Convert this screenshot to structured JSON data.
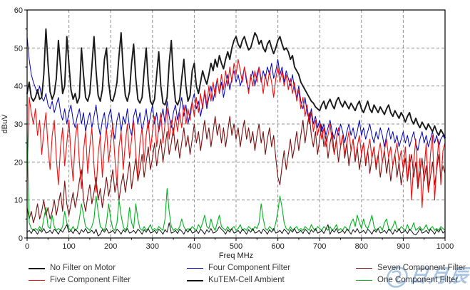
{
  "figure": {
    "background": "#ffffff"
  },
  "watermark": {
    "text": "日月辰",
    "color": "#a9c4e2"
  },
  "legend": {
    "items": [
      {
        "label": "No Filter on Motor",
        "color": "#1a1a1a",
        "weight": 2
      },
      {
        "label": "Four Component Filter",
        "color": "#0000bb",
        "weight": 1
      },
      {
        "label": "Seven Component Filter",
        "color": "#7a1010",
        "weight": 1
      },
      {
        "label": "Five Component Filter",
        "color": "#ee1111",
        "weight": 1
      },
      {
        "label": "KuTEM-Cell Ambient",
        "color": "#111111",
        "weight": 2
      },
      {
        "label": "One Component Filter",
        "color": "#00b41e",
        "weight": 1
      }
    ]
  },
  "chart_data": {
    "type": "line",
    "title": "",
    "xlabel": "Freq MHz",
    "ylabel": "dBuV",
    "xlim": [
      0,
      1000
    ],
    "ylim": [
      0,
      60
    ],
    "x_ticks": [
      0,
      100,
      200,
      300,
      400,
      500,
      600,
      700,
      800,
      900,
      1000
    ],
    "y_ticks": [
      0,
      10,
      20,
      30,
      40,
      50,
      60
    ],
    "grid": "dashed",
    "legend_position": "bottom",
    "x": {
      "start": 0,
      "step": 5,
      "count": 201
    },
    "series": [
      {
        "name": "No Filter on Motor",
        "color": "#1a1a1a",
        "width": 1.9,
        "values": [
          38,
          41,
          37,
          36,
          37,
          39,
          36.5,
          37,
          43,
          55,
          46,
          38.5,
          36.5,
          38,
          42,
          52,
          45,
          38,
          40,
          53,
          46,
          39,
          36.5,
          38,
          35.5,
          37,
          50,
          43,
          37,
          36,
          38,
          45,
          53,
          44,
          37.5,
          36,
          39,
          47,
          50,
          41,
          36.5,
          36,
          38,
          41,
          48,
          54,
          44,
          37.5,
          36,
          38.5,
          46,
          51,
          42,
          36.5,
          35.5,
          37,
          44,
          50,
          41,
          36,
          35,
          36.5,
          43,
          49,
          40,
          35.5,
          35,
          37,
          46,
          52,
          42,
          36,
          35,
          36.5,
          42,
          47,
          40,
          36,
          37.5,
          44,
          46,
          40,
          38,
          41,
          44,
          42,
          40.5,
          43,
          46,
          44,
          47,
          45,
          48,
          46,
          44.5,
          47,
          49,
          47,
          50,
          52,
          53,
          51,
          50,
          52,
          53,
          51,
          49.5,
          50,
          52,
          54,
          53,
          51,
          52,
          50,
          49,
          51,
          52,
          50,
          48.5,
          50,
          52,
          53,
          51,
          49.5,
          50,
          49,
          47,
          48,
          45,
          44,
          43,
          41,
          40,
          39,
          38,
          37,
          36,
          35.5,
          34.5,
          34,
          33.5,
          35,
          36,
          34,
          35.5,
          36.5,
          35,
          34,
          36,
          37,
          35.5,
          34.5,
          36,
          35,
          34,
          35.5,
          34.5,
          33.5,
          35,
          36,
          34,
          33,
          34.5,
          36,
          34,
          33,
          35,
          34,
          33,
          34.5,
          33.5,
          32.5,
          34,
          35,
          33,
          32,
          33.5,
          32.5,
          31.5,
          33,
          32,
          30.5,
          32,
          33,
          31,
          30,
          31.5,
          30,
          29,
          30.5,
          29.5,
          28.5,
          30,
          29,
          28,
          29.5,
          28,
          27,
          28.5,
          27.5,
          26.5
        ]
      },
      {
        "name": "Four Component Filter",
        "color": "#0000bb",
        "width": 1.0,
        "values": [
          53,
          47,
          43,
          41,
          39.5,
          38,
          40,
          37,
          36,
          38,
          35,
          34,
          36,
          33,
          35,
          37,
          33,
          31,
          34,
          30,
          33,
          35,
          31,
          29,
          32,
          34,
          30,
          33,
          28,
          31,
          33,
          29,
          32,
          35,
          30,
          27,
          31,
          33,
          28,
          32,
          34,
          29,
          26,
          31,
          33,
          28,
          32,
          30,
          34,
          29,
          27,
          32,
          34,
          30,
          33,
          28,
          31,
          34,
          29,
          32,
          35,
          30,
          33,
          28,
          31,
          34,
          30,
          36,
          32,
          29,
          33,
          35,
          31,
          34,
          37,
          32,
          35,
          30,
          33,
          36,
          38,
          34,
          36,
          32,
          35,
          38,
          34,
          37,
          40,
          36,
          39,
          42,
          38,
          41,
          37,
          40,
          43,
          39,
          42,
          44,
          41,
          43,
          40,
          42,
          45,
          41,
          39,
          42,
          44,
          40,
          43,
          45,
          41,
          44,
          42,
          45,
          43,
          46,
          42,
          44,
          47,
          43,
          45,
          41,
          44,
          42,
          40,
          43,
          39,
          37,
          40,
          36,
          34,
          37,
          33,
          31,
          34,
          30,
          32,
          29,
          31,
          28,
          30,
          27,
          29,
          31,
          28,
          26,
          29,
          27,
          30,
          28,
          25,
          28,
          30,
          27,
          29,
          26,
          28,
          31,
          27,
          29,
          26,
          28,
          30,
          27,
          25,
          28,
          26,
          29,
          27,
          24,
          27,
          29,
          26,
          28,
          25,
          27,
          24,
          26,
          28,
          25,
          27,
          24,
          26,
          28,
          25,
          23,
          26,
          28,
          25,
          27,
          24,
          26,
          28,
          25,
          27,
          24,
          26,
          27,
          26
        ]
      },
      {
        "name": "Seven Component Filter",
        "color": "#7a1010",
        "width": 1.1,
        "values": [
          8,
          5,
          7,
          4,
          6,
          9,
          5,
          7,
          10,
          6,
          8,
          5,
          7,
          10,
          6,
          9,
          12,
          7,
          15,
          9,
          6,
          9,
          12,
          8,
          11,
          15,
          18,
          10,
          7,
          11,
          14,
          9,
          12,
          16,
          10,
          13,
          8,
          12,
          16,
          11,
          14,
          18,
          12,
          15,
          10,
          14,
          17,
          12,
          16,
          20,
          13,
          17,
          21,
          15,
          18,
          22,
          16,
          20,
          24,
          18,
          21,
          25,
          19,
          23,
          26,
          20,
          24,
          28,
          22,
          25,
          29,
          23,
          26,
          21,
          25,
          29,
          24,
          27,
          22,
          26,
          30,
          25,
          28,
          23,
          27,
          31,
          26,
          29,
          24,
          28,
          32,
          27,
          30,
          25,
          29,
          24,
          28,
          32,
          27,
          30,
          26,
          29,
          24,
          28,
          31,
          26,
          29,
          25,
          28,
          23,
          27,
          30,
          25,
          28,
          22,
          26,
          29,
          24,
          27,
          21,
          16,
          14,
          19,
          23,
          18,
          22,
          26,
          21,
          24,
          28,
          23,
          27,
          31,
          25,
          29,
          33,
          27,
          24,
          28,
          22,
          26,
          30,
          24,
          27,
          21,
          25,
          28,
          22,
          26,
          20,
          24,
          27,
          21,
          25,
          19,
          23,
          26,
          20,
          24,
          18,
          22,
          25,
          19,
          23,
          17,
          21,
          24,
          18,
          22,
          16,
          20,
          23,
          17,
          21,
          15,
          19,
          22,
          16,
          20,
          14,
          18,
          21,
          15,
          19,
          22,
          16,
          20,
          13,
          17,
          21,
          15,
          19,
          12,
          16,
          20,
          14,
          18,
          22,
          16,
          19,
          17
        ]
      },
      {
        "name": "Five Component Filter",
        "color": "#ee1111",
        "width": 1.1,
        "values": [
          15,
          37,
          33,
          30,
          34,
          27,
          31,
          22,
          28,
          33,
          24,
          18,
          27,
          31,
          21,
          14,
          24,
          29,
          19,
          25,
          31,
          22,
          15,
          26,
          30,
          20,
          13,
          23,
          28,
          17,
          24,
          29,
          19,
          12,
          22,
          27,
          16,
          24,
          29,
          20,
          25,
          30,
          21,
          14,
          24,
          28,
          18,
          25,
          30,
          21,
          26,
          31,
          22,
          16,
          25,
          29,
          20,
          27,
          31,
          23,
          28,
          32,
          24,
          29,
          33,
          25,
          30,
          34,
          26,
          31,
          27,
          32,
          28,
          33,
          29,
          35,
          30,
          34,
          31,
          36,
          32,
          37,
          33,
          38,
          34,
          39,
          35,
          40,
          36,
          41,
          37,
          42,
          38,
          43,
          39,
          44,
          40,
          45,
          41,
          46,
          43,
          47,
          44,
          41,
          45,
          42,
          38,
          43,
          40,
          44,
          41,
          45,
          42,
          38,
          43,
          40,
          44,
          41,
          37,
          42,
          45,
          41,
          44,
          40,
          43,
          39,
          42,
          38,
          41,
          36,
          39,
          34,
          37,
          32,
          35,
          30,
          33,
          28,
          31,
          27,
          30,
          26,
          29,
          24,
          27,
          30,
          25,
          22,
          26,
          29,
          24,
          27,
          22,
          25,
          28,
          23,
          26,
          21,
          24,
          27,
          22,
          25,
          20,
          23,
          26,
          21,
          24,
          19,
          22,
          25,
          20,
          23,
          26,
          21,
          24,
          19,
          22,
          25,
          20,
          23,
          18,
          24,
          15,
          22,
          10,
          20,
          26,
          14,
          21,
          8,
          18,
          25,
          12,
          22,
          27,
          10,
          19,
          26,
          14,
          23,
          25
        ]
      },
      {
        "name": "KuTEM-Cell Ambient",
        "color": "#111111",
        "width": 1.0,
        "values": [
          1.5,
          2,
          1.2,
          2.3,
          1.8,
          1,
          2.2,
          1.5,
          2.5,
          1.3,
          1.5,
          2,
          1.2,
          2.3,
          1.8,
          1,
          2.2,
          1.5,
          2.5,
          3.5,
          1.5,
          2,
          1.2,
          2.3,
          1.8,
          1,
          2.2,
          1.5,
          2.5,
          1.3,
          1.5,
          2,
          1.2,
          2.3,
          0.5,
          1,
          2.2,
          1.5,
          2.5,
          1.3,
          1.5,
          2,
          1.2,
          2.3,
          1.8,
          1,
          2.2,
          1.5,
          2.5,
          1.3,
          1.5,
          2,
          1.2,
          2.3,
          1.8,
          1,
          2.2,
          1.5,
          2.5,
          1.3,
          1.5,
          2,
          1.2,
          2.3,
          1.8,
          1,
          2.2,
          1.5,
          4,
          1.3,
          1.5,
          2,
          1.2,
          2.3,
          1.8,
          1,
          2.2,
          1.5,
          2.5,
          1.3,
          1.5,
          2,
          1.2,
          2.3,
          1.8,
          1,
          2.2,
          1.5,
          2.5,
          1.3,
          1.5,
          2,
          3,
          2.3,
          1.8,
          1,
          2.2,
          1.5,
          2.5,
          1.3,
          1.5,
          2,
          1.2,
          2.3,
          1.8,
          1,
          2.2,
          1.5,
          2.5,
          1.3,
          1.5,
          2,
          1.2,
          2.3,
          1.8,
          1,
          2.2,
          1.5,
          2.5,
          1.3,
          1.5,
          2,
          1.2,
          2.3,
          1.8,
          1,
          2.2,
          1.5,
          2.5,
          1.3,
          1.5,
          2,
          1.2,
          2.3,
          1.8,
          1,
          2.2,
          1.5,
          2.5,
          1.3,
          1.5,
          2,
          1.2,
          2.3,
          3.5,
          1,
          2.2,
          1.5,
          2.5,
          1.3,
          1.5,
          2,
          1.2,
          2.3,
          1.8,
          1,
          2.2,
          1.5,
          2.5,
          1.3,
          1.5,
          2,
          1.2,
          2.3,
          1.8,
          1,
          2.2,
          1.5,
          2.5,
          1.3,
          1.5,
          2,
          1.2,
          2.3,
          1.8,
          1,
          2.2,
          1.5,
          2.5,
          1.3,
          1.5,
          2,
          1.2,
          2.3,
          1.8,
          1,
          0.8,
          1.5,
          2.5,
          1.3,
          1.5,
          2,
          1.2,
          2.3,
          1.8,
          1,
          2.2,
          1.5,
          2.5,
          1.3,
          1.8
        ]
      },
      {
        "name": "One Component Filter",
        "color": "#00b41e",
        "width": 1.1,
        "values": [
          28,
          4,
          2.5,
          2,
          2.5,
          2,
          3,
          2,
          5,
          8,
          3,
          2.5,
          6,
          3,
          2,
          2.5,
          2,
          3,
          7,
          4,
          2.5,
          2,
          3,
          2,
          2.5,
          5,
          9,
          6,
          3,
          2.5,
          2,
          3,
          5,
          11,
          7,
          3,
          2.5,
          2,
          4,
          9,
          5,
          2.5,
          2,
          4,
          10,
          6,
          3,
          2,
          3,
          8,
          4,
          2.5,
          9,
          5,
          2.5,
          2,
          3,
          2,
          2.5,
          3.5,
          2,
          2.5,
          2,
          3,
          2.5,
          2,
          5,
          13,
          7,
          3,
          2,
          2.5,
          2,
          3,
          5,
          3,
          2,
          2.5,
          2,
          3,
          2.5,
          2,
          3.5,
          2.5,
          4,
          6,
          3,
          2.5,
          5,
          3,
          2,
          4,
          6,
          3,
          2.5,
          2,
          3,
          2,
          2.5,
          3,
          2,
          2.5,
          3.5,
          2,
          2.5,
          2,
          3,
          2.5,
          2,
          3,
          2.5,
          4,
          9,
          5,
          2.5,
          2,
          3,
          2.5,
          2,
          4,
          7,
          11,
          8,
          4,
          2.5,
          2,
          3,
          2,
          2.5,
          3,
          2,
          2.5,
          2,
          3,
          2.5,
          2,
          3.5,
          2.5,
          2,
          3,
          2.5,
          2,
          3,
          2.5,
          2,
          3,
          2,
          2.5,
          3.5,
          2,
          2.5,
          2,
          3,
          2.5,
          2,
          4,
          5,
          3,
          6,
          4,
          2.5,
          5,
          3,
          2.5,
          4,
          6,
          3,
          2,
          2.5,
          3,
          2,
          4,
          5,
          2.5,
          2,
          3,
          4.5,
          2.5,
          2,
          3,
          2.5,
          2,
          3.5,
          2,
          2.5,
          4,
          2,
          2.5,
          3,
          2,
          2.5,
          3.5,
          2,
          2.5,
          3,
          2,
          2.5,
          2,
          3,
          2.5,
          2
        ]
      }
    ]
  }
}
